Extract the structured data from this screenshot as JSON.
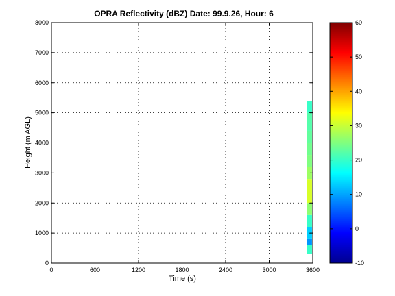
{
  "chart_data": {
    "type": "heatmap",
    "title": "OPRA Reflectivity (dBZ)  Date: 99.9.26, Hour: 6",
    "xlabel": "Time (s)",
    "ylabel": "Height (m AGL)",
    "xlim": [
      0,
      3600
    ],
    "ylim": [
      0,
      8000
    ],
    "xticks": [
      0,
      600,
      1200,
      1800,
      2400,
      3000,
      3600
    ],
    "yticks": [
      0,
      1000,
      2000,
      3000,
      4000,
      5000,
      6000,
      7000,
      8000
    ],
    "grid": true,
    "colormap": "jet",
    "colorbar": {
      "range": [
        -10,
        60
      ],
      "ticks": [
        -10,
        0,
        10,
        20,
        30,
        40,
        50,
        60
      ]
    },
    "data": {
      "x_range": [
        3520,
        3590
      ],
      "cells": [
        {
          "y": [
            300,
            600
          ],
          "value": 20
        },
        {
          "y": [
            600,
            800
          ],
          "value": 9
        },
        {
          "y": [
            800,
            1200
          ],
          "value": 13
        },
        {
          "y": [
            1200,
            1600
          ],
          "value": 20
        },
        {
          "y": [
            1600,
            2000
          ],
          "value": 26
        },
        {
          "y": [
            2000,
            2800
          ],
          "value": 31
        },
        {
          "y": [
            2800,
            3200
          ],
          "value": 27
        },
        {
          "y": [
            3200,
            3600
          ],
          "value": 25
        },
        {
          "y": [
            3600,
            4000
          ],
          "value": 24
        },
        {
          "y": [
            4000,
            4400
          ],
          "value": 23
        },
        {
          "y": [
            4400,
            5000
          ],
          "value": 22
        },
        {
          "y": [
            5000,
            5400
          ],
          "value": 20
        }
      ]
    }
  }
}
